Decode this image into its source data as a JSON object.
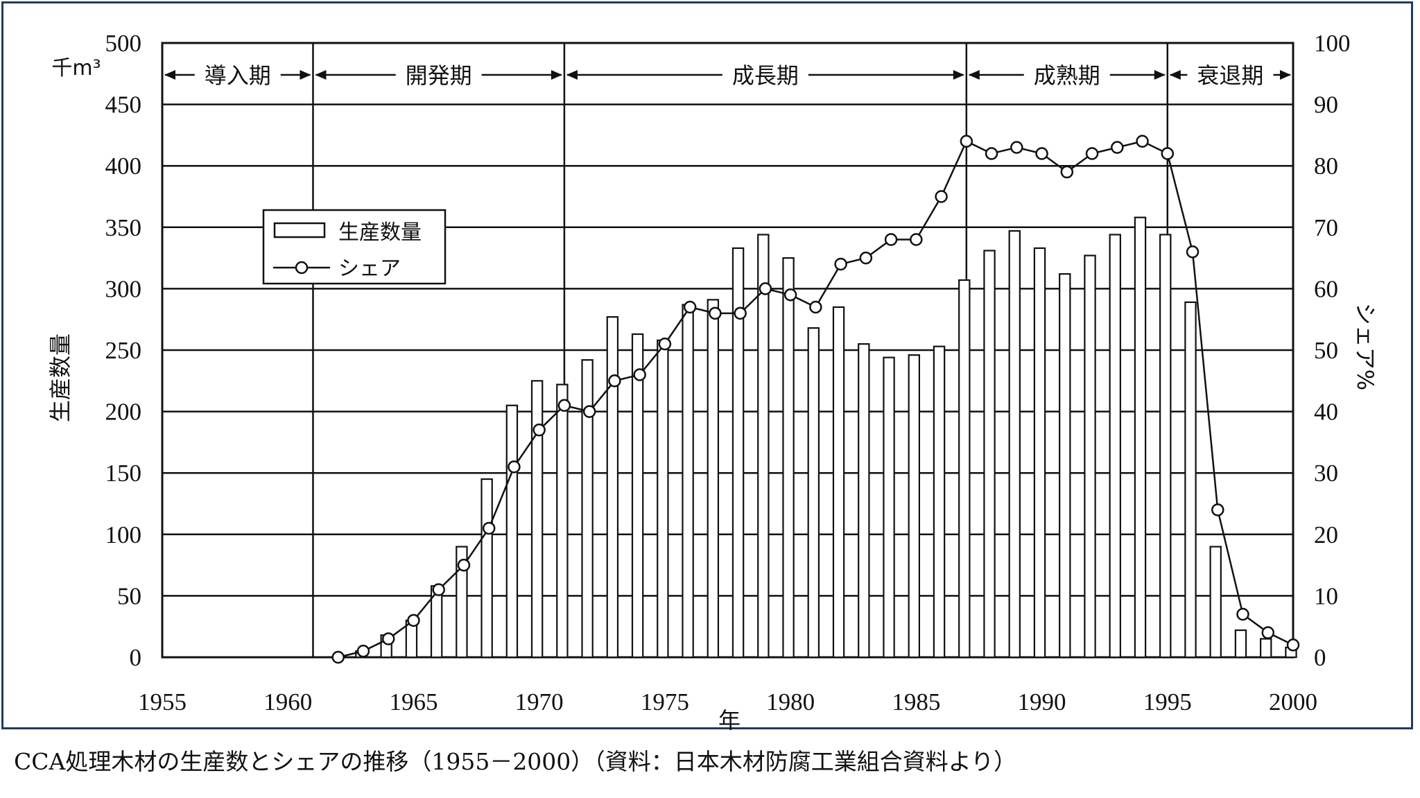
{
  "chart_data": {
    "type": "bar+line",
    "caption": "CCA処理木材の生産数とシェアの推移（1955－2000）（資料：日本木材防腐工業組合資料より）",
    "xlabel": "年",
    "ylabel_left": "生産数量",
    "unit_left": "千m³",
    "ylabel_right": "シェア%",
    "xlim": [
      1955,
      2000
    ],
    "ylim_left": [
      0,
      500
    ],
    "ylim_right": [
      0,
      100
    ],
    "x_ticks": [
      1955,
      1960,
      1965,
      1970,
      1975,
      1980,
      1985,
      1990,
      1995,
      2000
    ],
    "y_ticks_left": [
      0,
      50,
      100,
      150,
      200,
      250,
      300,
      350,
      400,
      450,
      500
    ],
    "y_ticks_right": [
      0,
      10,
      20,
      30,
      40,
      50,
      60,
      70,
      80,
      90,
      100
    ],
    "grid": true,
    "legend_position": "upper-left",
    "legend": {
      "bar": "生産数量",
      "line": "シェア"
    },
    "phases": [
      {
        "label": "導入期",
        "start": 1955,
        "end": 1961
      },
      {
        "label": "開発期",
        "start": 1961,
        "end": 1971
      },
      {
        "label": "成長期",
        "start": 1971,
        "end": 1987
      },
      {
        "label": "成熟期",
        "start": 1987,
        "end": 1995
      },
      {
        "label": "衰退期",
        "start": 1995,
        "end": 2000
      }
    ],
    "series": [
      {
        "name": "生産数量",
        "type": "bar",
        "axis": "left",
        "x": [
          1962,
          1963,
          1964,
          1965,
          1966,
          1967,
          1968,
          1969,
          1970,
          1971,
          1972,
          1973,
          1974,
          1975,
          1976,
          1977,
          1978,
          1979,
          1980,
          1981,
          1982,
          1983,
          1984,
          1985,
          1986,
          1987,
          1988,
          1989,
          1990,
          1991,
          1992,
          1993,
          1994,
          1995,
          1996,
          1997,
          1998,
          1999,
          2000
        ],
        "values": [
          0,
          5,
          18,
          30,
          58,
          90,
          145,
          205,
          225,
          222,
          242,
          277,
          263,
          258,
          287,
          291,
          333,
          344,
          325,
          268,
          285,
          255,
          244,
          246,
          253,
          307,
          331,
          347,
          333,
          312,
          327,
          344,
          358,
          344,
          289,
          90,
          22,
          15,
          8
        ]
      },
      {
        "name": "シェア",
        "type": "line",
        "axis": "right",
        "x": [
          1962,
          1963,
          1964,
          1965,
          1966,
          1967,
          1968,
          1969,
          1970,
          1971,
          1972,
          1973,
          1974,
          1975,
          1976,
          1977,
          1978,
          1979,
          1980,
          1981,
          1982,
          1983,
          1984,
          1985,
          1986,
          1987,
          1988,
          1989,
          1990,
          1991,
          1992,
          1993,
          1994,
          1995,
          1996,
          1997,
          1998,
          1999,
          2000
        ],
        "values": [
          0,
          1,
          3,
          6,
          11,
          15,
          21,
          31,
          37,
          41,
          40,
          45,
          46,
          51,
          57,
          56,
          56,
          60,
          59,
          57,
          64,
          65,
          68,
          68,
          75,
          84,
          82,
          83,
          82,
          79,
          82,
          83,
          84,
          82,
          66,
          24,
          7,
          4,
          2
        ]
      }
    ]
  }
}
